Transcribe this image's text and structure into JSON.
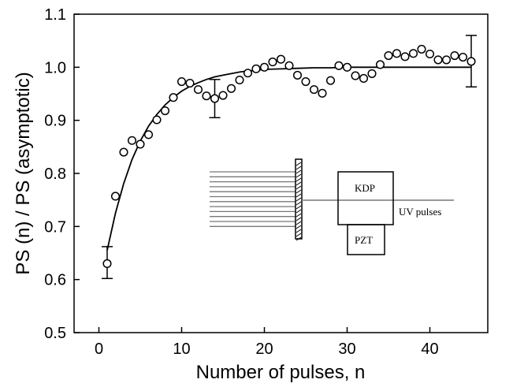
{
  "chart_data": {
    "type": "scatter",
    "xlabel": "Number of pulses, n",
    "ylabel": "PS (n) / PS (asymptotic)",
    "xlim": [
      -3,
      47
    ],
    "ylim": [
      0.5,
      1.1
    ],
    "x_ticks": [
      0,
      10,
      20,
      30,
      40
    ],
    "x_tick_labels": [
      "0",
      "10",
      "20",
      "30",
      "40"
    ],
    "y_ticks": [
      0.5,
      0.6,
      0.7,
      0.8,
      0.9,
      1.0,
      1.1
    ],
    "y_tick_labels": [
      "0.5",
      "0.6",
      "0.7",
      "0.8",
      "0.9",
      "1.0",
      "1.1"
    ],
    "grid": false,
    "series": [
      {
        "marker": "open-circle",
        "x": [
          1,
          2,
          3,
          4,
          5,
          6,
          7,
          8,
          9,
          10,
          11,
          12,
          13,
          14,
          15,
          16,
          17,
          18,
          19,
          20,
          21,
          22,
          23,
          24,
          25,
          26,
          27,
          28,
          29,
          30,
          31,
          32,
          33,
          34,
          35,
          36,
          37,
          38,
          39,
          40,
          41,
          42,
          43,
          44,
          45
        ],
        "y": [
          0.63,
          0.757,
          0.84,
          0.862,
          0.855,
          0.873,
          0.901,
          0.918,
          0.943,
          0.973,
          0.97,
          0.958,
          0.946,
          0.941,
          0.947,
          0.96,
          0.976,
          0.989,
          0.997,
          1.0,
          1.01,
          1.015,
          1.003,
          0.985,
          0.973,
          0.958,
          0.951,
          0.975,
          1.003,
          1.0,
          0.984,
          0.979,
          0.988,
          1.005,
          1.022,
          1.026,
          1.02,
          1.026,
          1.034,
          1.025,
          1.014,
          1.014,
          1.022,
          1.019,
          1.011
        ]
      },
      {
        "line": "fit",
        "x": [
          1,
          2,
          3,
          4,
          5,
          6,
          7,
          8,
          9,
          10,
          11,
          12,
          13,
          14,
          15,
          16,
          17,
          18,
          19,
          20,
          22,
          24,
          26,
          28,
          30,
          35,
          40,
          45
        ],
        "y": [
          0.655,
          0.725,
          0.781,
          0.826,
          0.861,
          0.889,
          0.911,
          0.929,
          0.943,
          0.955,
          0.964,
          0.971,
          0.977,
          0.982,
          0.985,
          0.988,
          0.991,
          0.993,
          0.994,
          0.996,
          0.997,
          0.998,
          0.999,
          0.999,
          1.0,
          1.0,
          1.0,
          1.0
        ]
      }
    ],
    "error_bars": [
      {
        "x": 1,
        "low": 0.602,
        "high": 0.662
      },
      {
        "x": 14,
        "low": 0.905,
        "high": 0.977
      },
      {
        "x": 45,
        "low": 0.963,
        "high": 1.06
      }
    ],
    "inset": {
      "kdp_label": "KDP",
      "pzt_label": "PZT",
      "beam_label": "UV  pulses"
    }
  }
}
